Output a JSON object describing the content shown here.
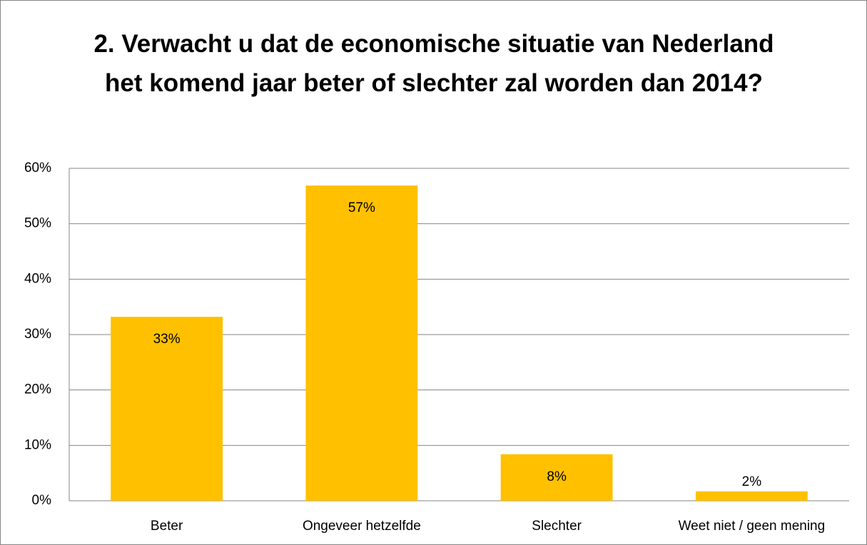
{
  "chart_data": {
    "type": "bar",
    "title": "2. Verwacht u dat de economische situatie van Nederland het komend jaar beter of slechter zal worden dan 2014?",
    "categories": [
      "Beter",
      "Ongeveer hetzelfde",
      "Slechter",
      "Weet niet / geen mening"
    ],
    "values": [
      33.2,
      56.9,
      8.4,
      1.7
    ],
    "value_labels": [
      "33%",
      "57%",
      "8%",
      "2%"
    ],
    "color": "#ffc000",
    "ylim": [
      0,
      60
    ],
    "yticks": [
      {
        "value": 0,
        "label": "0%"
      },
      {
        "value": 10,
        "label": "10%"
      },
      {
        "value": 20,
        "label": "20%"
      },
      {
        "value": 30,
        "label": "30%"
      },
      {
        "value": 40,
        "label": "40%"
      },
      {
        "value": 50,
        "label": "50%"
      },
      {
        "value": 60,
        "label": "60%"
      }
    ],
    "grid": true
  }
}
